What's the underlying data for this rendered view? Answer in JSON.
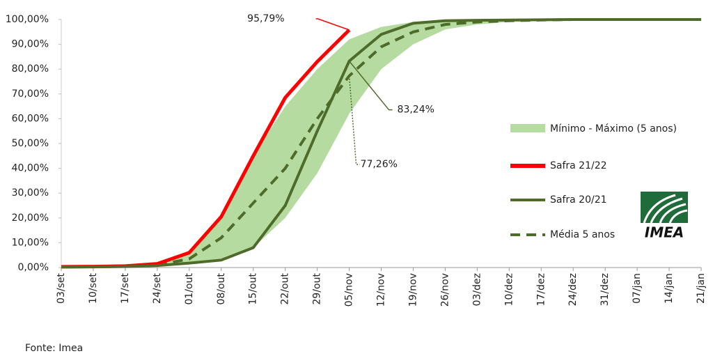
{
  "chart_data": {
    "type": "line",
    "categories": [
      "03/set",
      "10/set",
      "17/set",
      "24/set",
      "01/out",
      "08/out",
      "15/out",
      "22/out",
      "29/out",
      "05/nov",
      "12/nov",
      "19/nov",
      "26/nov",
      "03/dez",
      "10/dez",
      "17/dez",
      "24/dez",
      "31/dez",
      "07/jan",
      "14/jan",
      "21/jan"
    ],
    "band": {
      "name": "Mínimo - Máximo (5 anos)",
      "color": "#b5dba0",
      "low": [
        0.1,
        0.2,
        0.3,
        0.5,
        1.5,
        3,
        8,
        20,
        38,
        62,
        80,
        90,
        96,
        98,
        99,
        99.5,
        99.8,
        100,
        100,
        100,
        100
      ],
      "high": [
        0.5,
        0.6,
        0.8,
        1.5,
        6,
        20,
        45,
        65,
        80,
        92,
        97,
        99,
        99.8,
        100,
        100,
        100,
        100,
        100,
        100,
        100,
        100
      ]
    },
    "series": [
      {
        "name": "Média 5 anos",
        "color": "#4e6b2a",
        "dash": true,
        "values": [
          0.3,
          0.4,
          0.5,
          1,
          3.5,
          12,
          26,
          40,
          60,
          77.26,
          89,
          95,
          98,
          99,
          99.5,
          99.8,
          100,
          100,
          100,
          100,
          100
        ],
        "value_labels": [
          null,
          null,
          null,
          null,
          null,
          null,
          null,
          null,
          null,
          "77,26%",
          null,
          null,
          null,
          null,
          null,
          null,
          null,
          null,
          null,
          null,
          null
        ]
      },
      {
        "name": "Safra 21/22",
        "color": "#ff0000",
        "values": [
          0.3,
          0.4,
          0.6,
          1.5,
          6,
          20.5,
          45,
          68.5,
          83,
          95.79,
          null,
          null,
          null,
          null,
          null,
          null,
          null,
          null,
          null,
          null,
          null
        ],
        "value_labels": [
          null,
          null,
          null,
          null,
          null,
          null,
          null,
          null,
          null,
          "95,79%",
          null,
          null,
          null,
          null,
          null,
          null,
          null,
          null,
          null,
          null,
          null
        ]
      },
      {
        "name": "Safra 20/21",
        "color": "#4e6b2a",
        "values": [
          0.2,
          0.3,
          0.4,
          0.8,
          1.8,
          3,
          8,
          25,
          55,
          83.24,
          94,
          98.5,
          99.5,
          99.7,
          99.8,
          99.9,
          100,
          100,
          100,
          100,
          100
        ],
        "value_labels": [
          null,
          null,
          null,
          null,
          null,
          null,
          null,
          null,
          null,
          "83,24%",
          null,
          null,
          null,
          null,
          null,
          null,
          null,
          null,
          null,
          null,
          null
        ]
      }
    ],
    "ylim": [
      0,
      100
    ],
    "yticks": [
      {
        "value": 0,
        "label": "0,00%"
      },
      {
        "value": 10,
        "label": "10,00%"
      },
      {
        "value": 20,
        "label": "20,00%"
      },
      {
        "value": 30,
        "label": "30,00%"
      },
      {
        "value": 40,
        "label": "40,00%"
      },
      {
        "value": 50,
        "label": "50,00%"
      },
      {
        "value": 60,
        "label": "60,00%"
      },
      {
        "value": 70,
        "label": "70,00%"
      },
      {
        "value": 80,
        "label": "80,00%"
      },
      {
        "value": 90,
        "label": "90,00%"
      },
      {
        "value": 100,
        "label": "100,00%"
      }
    ],
    "grid": false,
    "logo": "IMEA",
    "source": "Fonte: Imea"
  }
}
